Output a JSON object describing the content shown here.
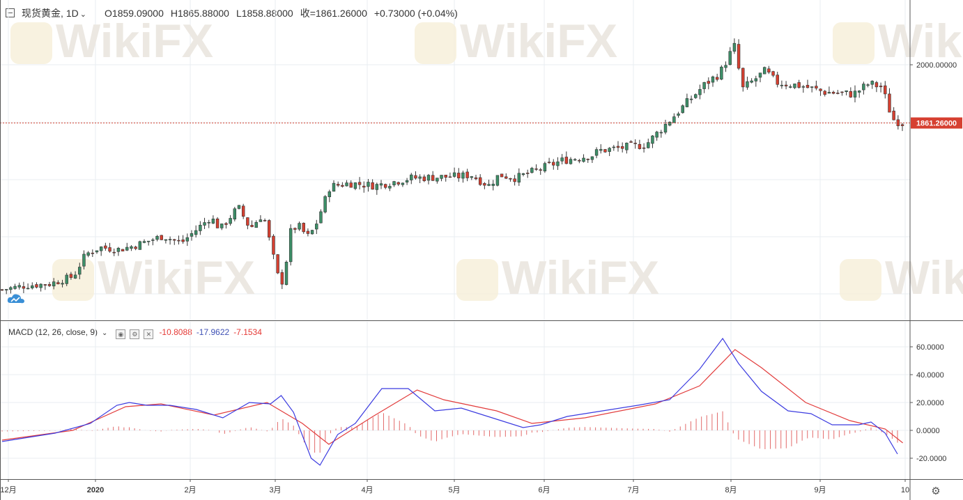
{
  "header": {
    "symbol": "现货黄金,",
    "interval": "1D",
    "open": "O1859.09000",
    "high": "H1865.88000",
    "low": "L1858.88000",
    "close": "收=1861.26000",
    "change": "+0.73000 (+0.04%)"
  },
  "macd_header": {
    "label": "MACD (12, 26, close, 9)",
    "hist": "-10.8088",
    "macd": "-17.9622",
    "signal": "-7.1534"
  },
  "price_tag": "1861.26000",
  "watermark": "WikiFX",
  "colors": {
    "up": "#3d8f68",
    "down": "#d64031",
    "macd": "#3b3be0",
    "signal": "#e23b3b",
    "grid": "#e9eef2",
    "pricetag": "#d64031"
  },
  "chart_data": [
    {
      "type": "candlestick",
      "title": "现货黄金",
      "y_axis": {
        "labels": [
          "2000.00000"
        ],
        "range": [
          1452,
          2106
        ]
      },
      "x_axis": {
        "labels": [
          "12月",
          "2020",
          "2月",
          "3月",
          "4月",
          "5月",
          "6月",
          "7月",
          "8月",
          "9月",
          "10"
        ]
      },
      "last_price": 1861.26,
      "anchors": [
        [
          0,
          1464
        ],
        [
          20,
          1474
        ],
        [
          40,
          1478
        ],
        [
          60,
          1496
        ],
        [
          70,
          1548
        ],
        [
          82,
          1565
        ],
        [
          98,
          1560
        ],
        [
          110,
          1568
        ],
        [
          135,
          1592
        ],
        [
          150,
          1575
        ],
        [
          175,
          1637
        ],
        [
          183,
          1608
        ],
        [
          198,
          1661
        ],
        [
          208,
          1610
        ],
        [
          219,
          1645
        ],
        [
          226,
          1560
        ],
        [
          233,
          1477
        ],
        [
          236,
          1488
        ],
        [
          242,
          1602
        ],
        [
          248,
          1618
        ],
        [
          256,
          1590
        ],
        [
          262,
          1610
        ],
        [
          275,
          1710
        ],
        [
          291,
          1718
        ],
        [
          313,
          1712
        ],
        [
          343,
          1730
        ],
        [
          383,
          1734
        ],
        [
          393,
          1738
        ],
        [
          408,
          1712
        ],
        [
          417,
          1738
        ],
        [
          431,
          1730
        ],
        [
          470,
          1772
        ],
        [
          496,
          1785
        ],
        [
          500,
          1795
        ],
        [
          540,
          1810
        ],
        [
          590,
          1955
        ],
        [
          602,
          1980
        ],
        [
          614,
          2045
        ],
        [
          621,
          1942
        ],
        [
          640,
          1985
        ],
        [
          649,
          1958
        ],
        [
          670,
          1950
        ],
        [
          690,
          1935
        ],
        [
          714,
          1930
        ],
        [
          727,
          1955
        ],
        [
          738,
          1947
        ],
        [
          743,
          1900
        ],
        [
          748,
          1868
        ],
        [
          755,
          1861
        ]
      ],
      "candles": 210
    },
    {
      "type": "line",
      "title": "MACD (12, 26, close, 9)",
      "y_axis": {
        "labels": [
          "60.0000",
          "40.0000",
          "20.0000",
          "0.0000",
          "-20.0000"
        ],
        "range": [
          -27,
          68
        ]
      },
      "series_macd": [
        [
          0,
          -8
        ],
        [
          30,
          -2
        ],
        [
          50,
          5
        ],
        [
          65,
          18
        ],
        [
          72,
          20
        ],
        [
          82,
          18
        ],
        [
          95,
          18
        ],
        [
          110,
          15
        ],
        [
          125,
          9
        ],
        [
          140,
          20
        ],
        [
          152,
          19
        ],
        [
          158,
          25
        ],
        [
          165,
          13
        ],
        [
          175,
          -20
        ],
        [
          180,
          -25
        ],
        [
          190,
          -3
        ],
        [
          200,
          5
        ],
        [
          215,
          30
        ],
        [
          230,
          30
        ],
        [
          245,
          14
        ],
        [
          260,
          16
        ],
        [
          280,
          8
        ],
        [
          295,
          2
        ],
        [
          305,
          4
        ],
        [
          320,
          10
        ],
        [
          340,
          14
        ],
        [
          360,
          18
        ],
        [
          378,
          22
        ],
        [
          395,
          44
        ],
        [
          408,
          66
        ],
        [
          417,
          48
        ],
        [
          430,
          28
        ],
        [
          445,
          14
        ],
        [
          458,
          12
        ],
        [
          470,
          4
        ],
        [
          485,
          4
        ],
        [
          492,
          6
        ],
        [
          500,
          -2
        ],
        [
          507,
          -17
        ]
      ],
      "series_signal": [
        [
          0,
          -7
        ],
        [
          40,
          0
        ],
        [
          70,
          17
        ],
        [
          90,
          19
        ],
        [
          120,
          11
        ],
        [
          150,
          20
        ],
        [
          170,
          5
        ],
        [
          185,
          -10
        ],
        [
          210,
          10
        ],
        [
          235,
          29
        ],
        [
          250,
          22
        ],
        [
          280,
          14
        ],
        [
          300,
          5
        ],
        [
          330,
          9
        ],
        [
          370,
          19
        ],
        [
          395,
          32
        ],
        [
          415,
          58
        ],
        [
          430,
          45
        ],
        [
          455,
          20
        ],
        [
          480,
          7
        ],
        [
          500,
          1
        ],
        [
          510,
          -9
        ]
      ]
    }
  ]
}
